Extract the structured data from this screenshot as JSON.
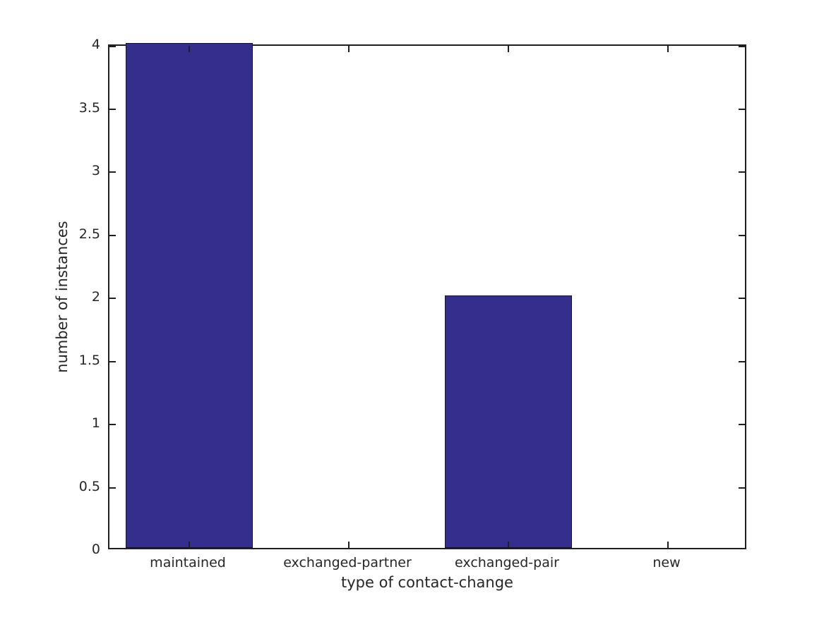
{
  "chart_data": {
    "type": "bar",
    "categories": [
      "maintained",
      "exchanged-partner",
      "exchanged-pair",
      "new"
    ],
    "values": [
      4,
      0,
      2,
      0
    ],
    "title": "",
    "xlabel": "type of contact-change",
    "ylabel": "number of instances",
    "ylim": [
      0,
      4
    ],
    "yticks": [
      0,
      0.5,
      1,
      1.5,
      2,
      2.5,
      3,
      3.5,
      4
    ],
    "bar_width_fraction": 0.8,
    "bar_color": "#342F8C",
    "bar_edge_color": "#14123A",
    "axis_color": "#1f1f1f",
    "text_color": "#262626",
    "background_color": "#ffffff",
    "grid": false,
    "legend": null
  }
}
